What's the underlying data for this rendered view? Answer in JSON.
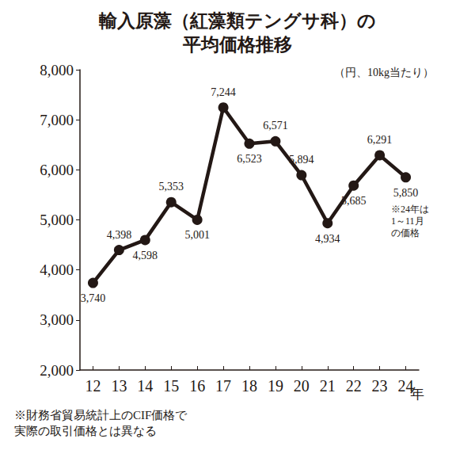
{
  "chart_data": {
    "type": "line",
    "title": "輸入原藻（紅藻類テングサ科）の\n平均価格推移",
    "subtitle": "（円、10kg当たり）",
    "xlabel": "年",
    "annotations": [
      "※24年は\n1～11月\nの価格",
      "※財務省貿易統計上のCIF価格で\n実際の取引価格とは異なる"
    ],
    "categories": [
      "12",
      "13",
      "14",
      "15",
      "16",
      "17",
      "18",
      "19",
      "20",
      "21",
      "22",
      "23",
      "24"
    ],
    "values": [
      3740,
      4398,
      4598,
      5353,
      5001,
      7244,
      6523,
      6571,
      5894,
      4934,
      5685,
      6291,
      5850
    ],
    "value_labels": [
      "3,740",
      "4,398",
      "4,598",
      "5,353",
      "5,001",
      "7,244",
      "6,523",
      "6,571",
      "5,894",
      "4,934",
      "5,685",
      "6,291",
      "5,850"
    ],
    "color": "#231815",
    "marker": "circle",
    "ylim": [
      2000,
      8000
    ],
    "yticks": [
      {
        "value": 2000,
        "label": "2,000"
      },
      {
        "value": 3000,
        "label": "3,000"
      },
      {
        "value": 4000,
        "label": "4,000"
      },
      {
        "value": 5000,
        "label": "5,000"
      },
      {
        "value": 6000,
        "label": "6,000"
      },
      {
        "value": 7000,
        "label": "7,000"
      },
      {
        "value": 8000,
        "label": "8,000"
      }
    ],
    "grid": false,
    "data_labels": true
  }
}
